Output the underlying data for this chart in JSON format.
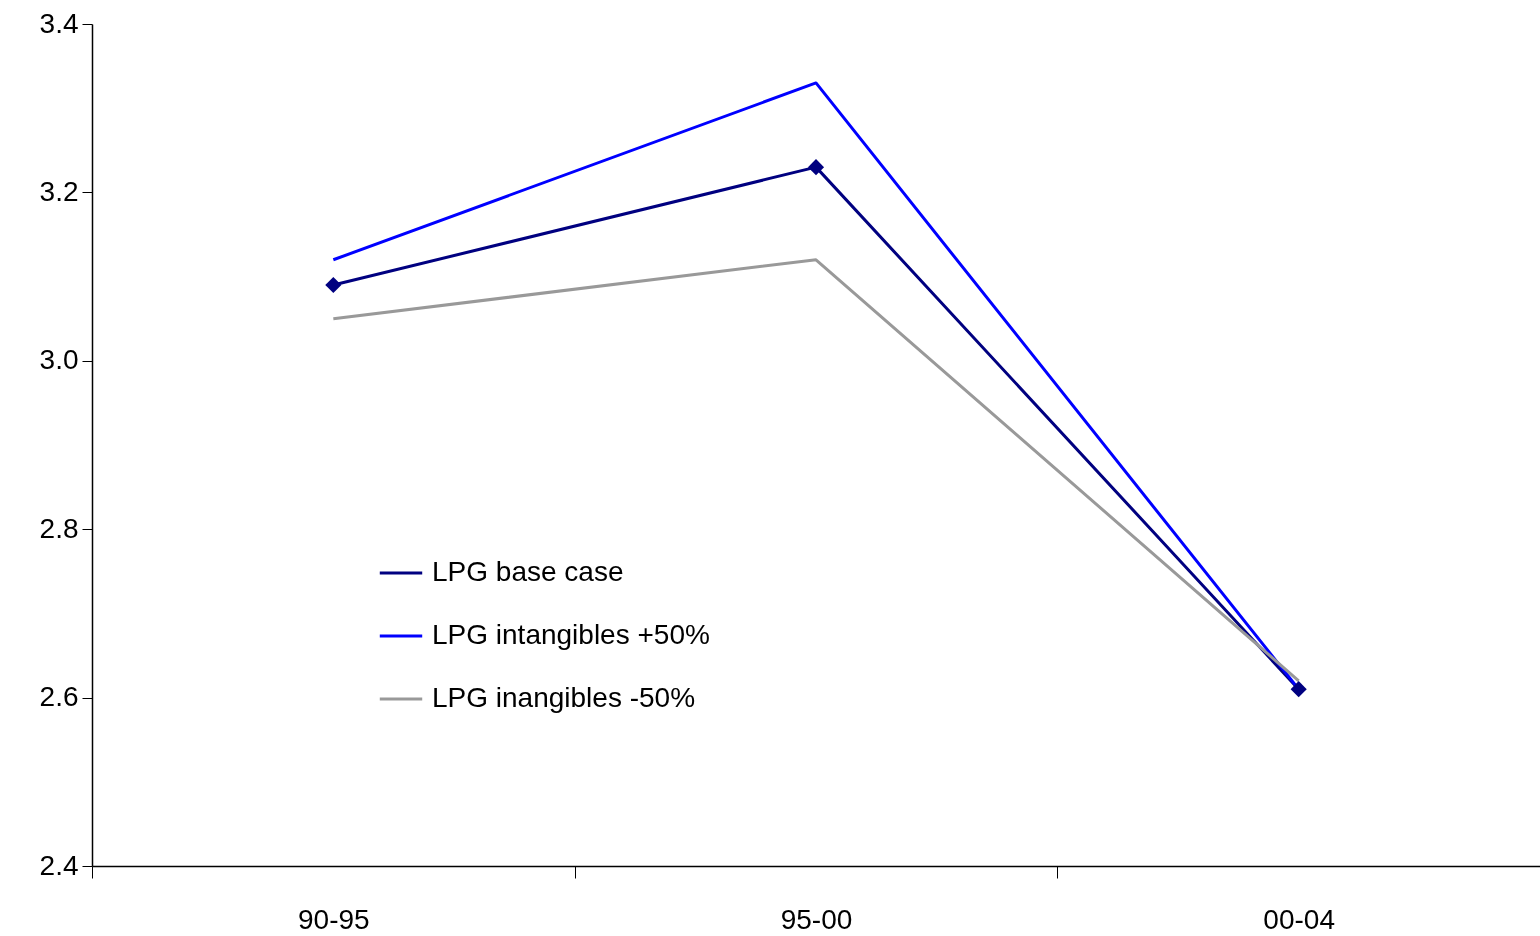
{
  "chart_data": {
    "type": "line",
    "categories": [
      "90-95",
      "95-00",
      "00-04"
    ],
    "series": [
      {
        "name": "LPG base case",
        "color": "#000080",
        "marker": "diamond",
        "values": [
          3.09,
          3.23,
          2.61
        ]
      },
      {
        "name": "LPG  intangibles +50%",
        "color": "#0000ff",
        "values": [
          3.12,
          3.33,
          2.61
        ]
      },
      {
        "name": "LPG  inangibles -50%",
        "color": "#999999",
        "values": [
          3.05,
          3.12,
          2.62
        ]
      }
    ],
    "ylim": [
      2.4,
      3.4
    ],
    "yticks": [
      2.4,
      2.6,
      2.8,
      {
        "value": 3,
        "label": "3.0"
      },
      3.2,
      3.4
    ],
    "grid": false,
    "legend": "left"
  }
}
